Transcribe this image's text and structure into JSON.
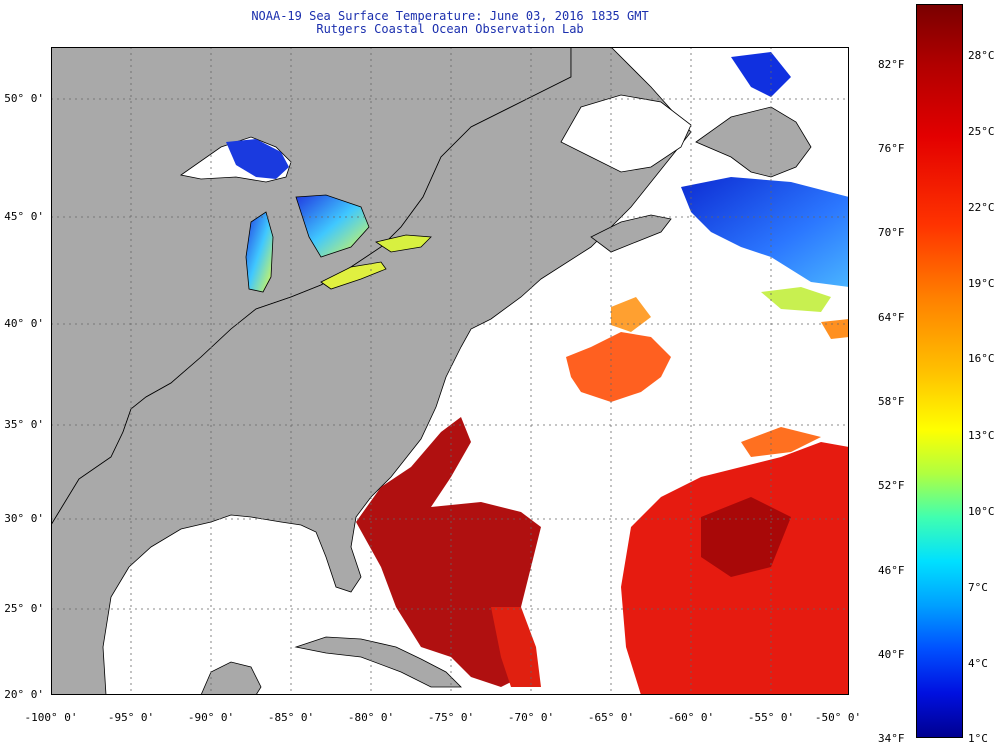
{
  "title": {
    "line1": "NOAA-19 Sea Surface Temperature:  June 03, 2016 1835 GMT",
    "line2": "Rutgers Coastal Ocean Observation Lab"
  },
  "map": {
    "lat_labels": [
      "50° 0'",
      "45° 0'",
      "40° 0'",
      "35° 0'",
      "30° 0'",
      "25° 0'",
      "20° 0'"
    ],
    "lon_labels": [
      "-100° 0'",
      "-95° 0'",
      "-90° 0'",
      "-85° 0'",
      "-80° 0'",
      "-75° 0'",
      "-70° 0'",
      "-65° 0'",
      "-60° 0'",
      "-55° 0'",
      "-50° 0'"
    ],
    "colors": {
      "land": "#a9a9a9",
      "no_data": "#ffffff",
      "grid": "#666666"
    }
  },
  "colorbar": {
    "f_labels": [
      "82°F",
      "76°F",
      "70°F",
      "64°F",
      "58°F",
      "52°F",
      "46°F",
      "40°F",
      "34°F"
    ],
    "c_labels": [
      "28°C",
      "25°C",
      "22°C",
      "19°C",
      "16°C",
      "13°C",
      "10°C",
      "7°C",
      "4°C",
      "1°C"
    ]
  }
}
